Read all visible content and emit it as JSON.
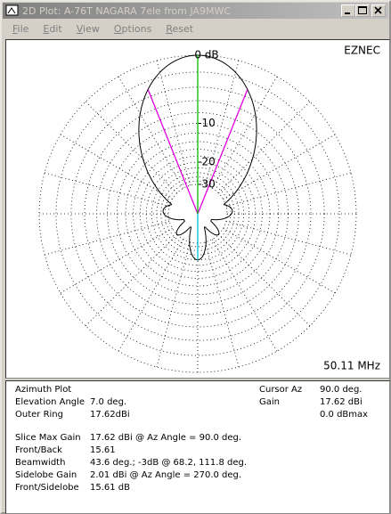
{
  "window": {
    "title": "2D Plot: A-76T NAGARA 7ele from JA9MWC",
    "menu": [
      "File",
      "Edit",
      "View",
      "Options",
      "Reset"
    ]
  },
  "plot": {
    "brand": "EZNEC",
    "ring_labels": [
      "0 dB",
      "-10",
      "-20",
      "-30"
    ],
    "frequency": "50.11 MHz"
  },
  "info": {
    "plot_type": "Azimuth Plot",
    "settings": [
      [
        "Elevation Angle",
        "7.0 deg."
      ],
      [
        "Outer Ring",
        "17.62dBi"
      ]
    ],
    "stats": [
      [
        "Slice Max Gain",
        "17.62 dBi @ Az Angle = 90.0 deg."
      ],
      [
        "Front/Back",
        "15.61"
      ],
      [
        "Beamwidth",
        "43.6 deg.; -3dB @ 68.2, 111.8 deg."
      ],
      [
        "Sidelobe Gain",
        "2.01 dBi @ Az Angle = 270.0 deg."
      ],
      [
        "Front/Sidelobe",
        "15.61 dB"
      ]
    ],
    "cursor": [
      [
        "Cursor Az",
        "90.0 deg."
      ],
      [
        "Gain",
        "17.62 dBi"
      ]
    ],
    "gain_max": "0.0 dBmax"
  }
}
